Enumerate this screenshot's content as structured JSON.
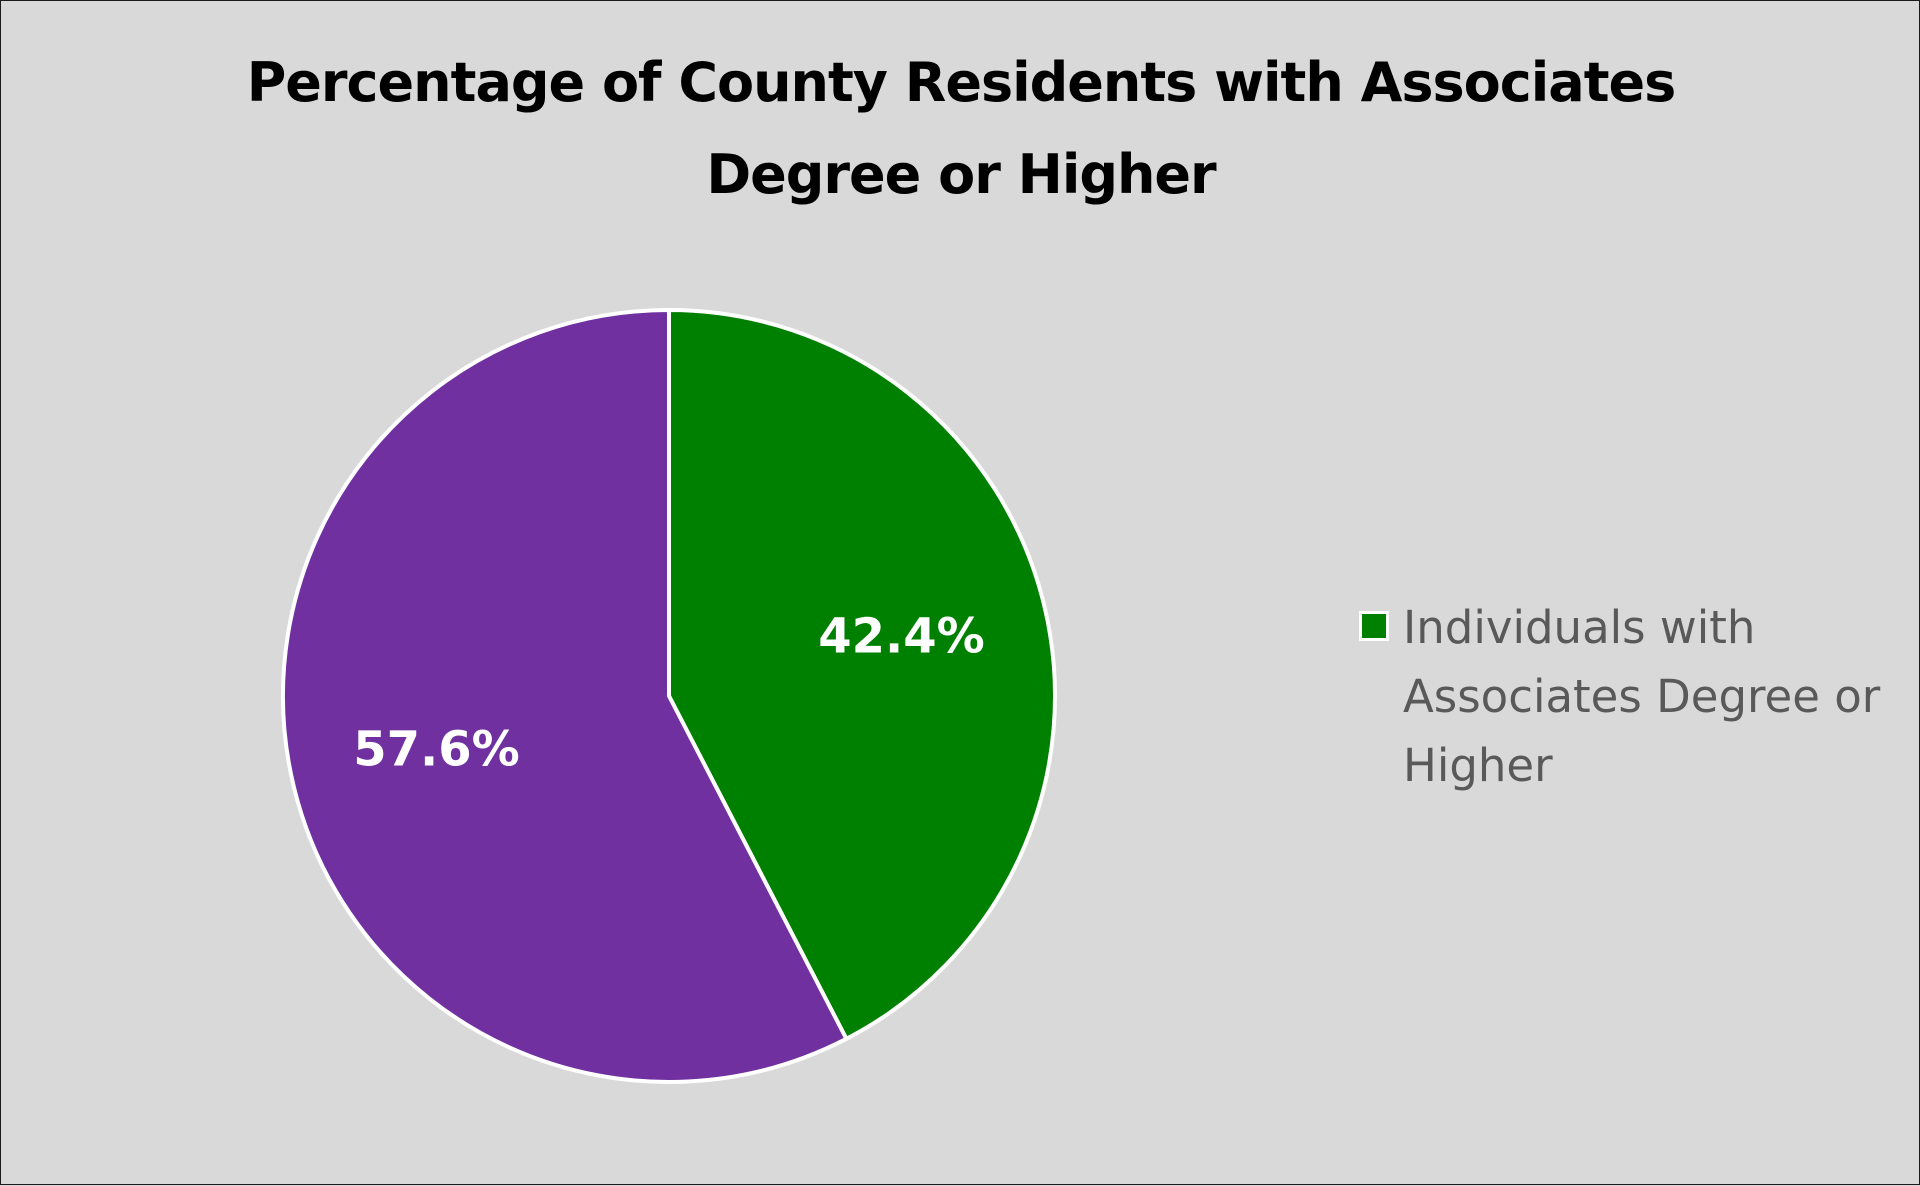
{
  "chart_data": {
    "type": "pie",
    "title": "Percentage of County Residents with Associates Degree or Higher",
    "slices": [
      {
        "name": "Individuals with Associates Degree or Higher",
        "value": 42.4,
        "label": "42.4%",
        "color": "#008000",
        "in_legend": true
      },
      {
        "name": "",
        "value": 57.6,
        "label": "57.6%",
        "color": "#7030a0",
        "in_legend": false
      }
    ],
    "start_angle": "12 o'clock",
    "direction": "clockwise",
    "legend_position": "right",
    "slice_border_color": "#ffffff",
    "background_color": "#d9d9d9"
  }
}
